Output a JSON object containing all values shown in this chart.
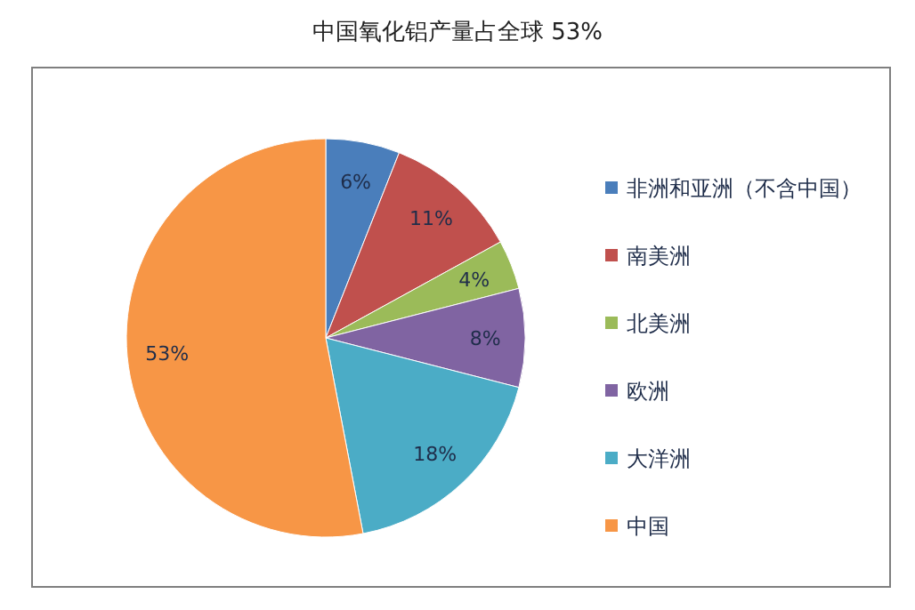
{
  "chart_data": {
    "type": "pie",
    "title": "中国氧化铝产量占全球 53%",
    "categories": [
      "非洲和亚洲（不含中国）",
      "南美洲",
      "北美洲",
      "欧洲",
      "大洋洲",
      "中国"
    ],
    "values": [
      6,
      11,
      4,
      8,
      18,
      53
    ],
    "colors": [
      "#4a7ebb",
      "#c0504d",
      "#9bbb59",
      "#8064a2",
      "#4bacc6",
      "#f79646"
    ],
    "value_labels": [
      "6%",
      "11%",
      "4%",
      "8%",
      "18%",
      "53%"
    ],
    "legend": "right"
  }
}
